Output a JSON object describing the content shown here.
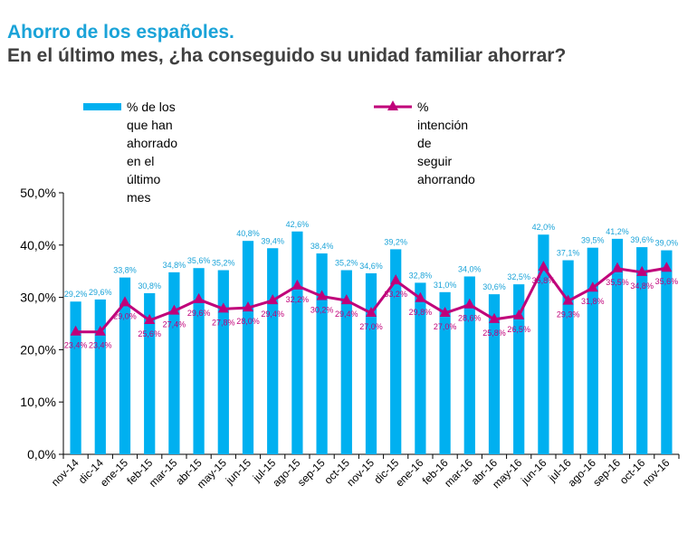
{
  "title": "Ahorro de los españoles.",
  "subtitle": "En el último mes, ¿ha conseguido su unidad familiar ahorrar?",
  "colors": {
    "bar": "#00b0f0",
    "line": "#c0007a",
    "barLabel": "#1aa3d8",
    "lineLabel": "#c0007a",
    "axis": "#000000"
  },
  "legend": {
    "bar_label_line1": "% de los que han",
    "bar_label_line2": "ahorrado en el último mes",
    "line_label_line1": "% intención de",
    "line_label_line2": "seguir ahorrando"
  },
  "chart_data": {
    "type": "bar",
    "categories": [
      "nov-14",
      "dic-14",
      "ene-15",
      "feb-15",
      "mar-15",
      "abr-15",
      "may-15",
      "jun-15",
      "jul-15",
      "ago-15",
      "sep-15",
      "oct-15",
      "nov-15",
      "dic-15",
      "ene-16",
      "feb-16",
      "mar-16",
      "abr-16",
      "may-16",
      "jun-16",
      "jul-16",
      "ago-16",
      "sep-16",
      "oct-16",
      "nov-16"
    ],
    "series": [
      {
        "name": "% de los que han ahorrado en el último mes",
        "type": "bar",
        "values": [
          29.2,
          29.6,
          33.8,
          30.8,
          34.8,
          35.6,
          35.2,
          40.8,
          39.4,
          42.6,
          38.4,
          35.2,
          34.6,
          39.2,
          32.8,
          31.0,
          34.0,
          30.6,
          32.5,
          42.0,
          37.1,
          39.5,
          41.2,
          39.6,
          39.0
        ],
        "labels": [
          "29,2%",
          "29,6%",
          "33,8%",
          "30,8%",
          "34,8%",
          "35,6%",
          "35,2%",
          "40,8%",
          "39,4%",
          "42,6%",
          "38,4%",
          "35,2%",
          "34,6%",
          "39,2%",
          "32,8%",
          "31,0%",
          "34,0%",
          "30,6%",
          "32,5%",
          "42,0%",
          "37,1%",
          "39,5%",
          "41,2%",
          "39,6%",
          "39,0%"
        ]
      },
      {
        "name": "% intención de seguir ahorrando",
        "type": "line",
        "values": [
          23.4,
          23.4,
          29.0,
          25.6,
          27.4,
          29.6,
          27.8,
          28.0,
          29.4,
          32.2,
          30.2,
          29.4,
          27.0,
          33.2,
          29.8,
          27.0,
          28.6,
          25.8,
          26.5,
          35.8,
          29.3,
          31.8,
          35.5,
          34.8,
          35.6
        ],
        "labels": [
          "23,4%",
          "23,4%",
          "29,0%",
          "25,6%",
          "27,4%",
          "29,6%",
          "27,8%",
          "28,0%",
          "29,4%",
          "32,2%",
          "30,2%",
          "29,4%",
          "27,0%",
          "33,2%",
          "29,8%",
          "27,0%",
          "28,6%",
          "25,8%",
          "26,5%",
          "35,8%",
          "29,3%",
          "31,8%",
          "35,5%",
          "34,8%",
          "35,6%"
        ]
      }
    ],
    "ylim": [
      0,
      50
    ],
    "yticks": [
      "0,0%",
      "10,0%",
      "20,0%",
      "30,0%",
      "40,0%",
      "50,0%"
    ],
    "xlabel": "",
    "ylabel": "",
    "grid": false,
    "legend_position": "top-left"
  }
}
